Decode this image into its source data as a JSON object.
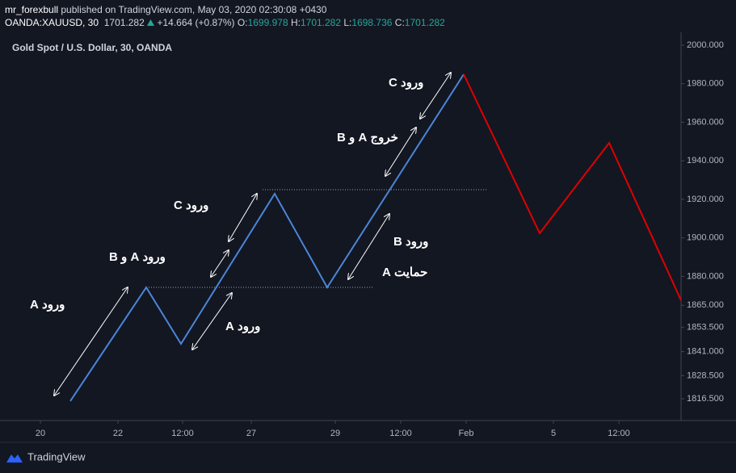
{
  "header": {
    "author": "mr_forexbull",
    "published": "published on TradingView.com, May 03, 2020 02:30:08 +0430",
    "symbol": "OANDA:XAUUSD, 30",
    "last": "1701.282",
    "change": "+14.664 (+0.87%)",
    "ohlc": [
      {
        "key": "O:",
        "value": "1699.978"
      },
      {
        "key": "H:",
        "value": "1701.282"
      },
      {
        "key": "L:",
        "value": "1698.736"
      },
      {
        "key": "C:",
        "value": "1701.282"
      }
    ]
  },
  "footer": {
    "brand": "TradingView"
  },
  "chart_data": {
    "type": "line",
    "title": "Gold Spot / U.S. Dollar, 30, OANDA",
    "series": [
      {
        "color": "#4a86d8",
        "x": [
          7.9,
          17.3,
          21.6,
          33.2,
          39.7,
          56.6
        ],
        "values": [
          1815.3,
          1874.3,
          1845.0,
          1922.9,
          1874.3,
          1984.9
        ]
      },
      {
        "color": "#e00000",
        "x": [
          56.6,
          66.0,
          74.6,
          83.5
        ],
        "values": [
          1984.9,
          1902.4,
          1949.3,
          1867.6
        ]
      }
    ],
    "xlim": [
      0,
      83.5
    ],
    "xticks": [
      {
        "value": 4.2,
        "label": "20"
      },
      {
        "value": 13.8,
        "label": "22"
      },
      {
        "value": 21.8,
        "label": "12:00"
      },
      {
        "value": 30.3,
        "label": "27"
      },
      {
        "value": 40.7,
        "label": "29"
      },
      {
        "value": 48.8,
        "label": "12:00"
      },
      {
        "value": 56.9,
        "label": "Feb"
      },
      {
        "value": 67.7,
        "label": "5"
      },
      {
        "value": 75.8,
        "label": "12:00"
      }
    ],
    "ylim": [
      1805.2,
      2006.7
    ],
    "yticks": [
      {
        "value": 2000,
        "label": "2000.000"
      },
      {
        "value": 1980,
        "label": "1980.000"
      },
      {
        "value": 1960,
        "label": "1960.000"
      },
      {
        "value": 1940,
        "label": "1940.000"
      },
      {
        "value": 1920,
        "label": "1920.000"
      },
      {
        "value": 1900,
        "label": "1900.000"
      },
      {
        "value": 1880,
        "label": "1880.000"
      },
      {
        "value": 1865,
        "label": "1865.000"
      },
      {
        "value": 1853.5,
        "label": "1853.500"
      },
      {
        "value": 1841,
        "label": "1841.000"
      },
      {
        "value": 1828.5,
        "label": "1828.500"
      },
      {
        "value": 1816.5,
        "label": "1816.500"
      }
    ],
    "grid": false,
    "annotations": [
      "ورود A",
      "ورود A",
      "ورود A و B",
      "ورود C",
      "خروج A و B",
      "ورود C",
      "ورود B",
      "حمایت A"
    ]
  }
}
